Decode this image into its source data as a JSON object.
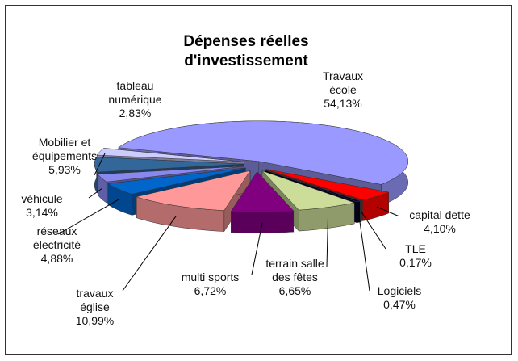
{
  "chart_data": {
    "type": "pie",
    "title": "Dépenses réelles d'investissement",
    "categories": [
      "Travaux école",
      "capital dette",
      "TLE",
      "Logiciels",
      "terrain salle des fêtes",
      "multi sports",
      "travaux église",
      "réseaux électricité",
      "véhicule",
      "Mobilier et équipements",
      "tableau numérique"
    ],
    "values": [
      54.13,
      4.1,
      0.17,
      0.47,
      6.65,
      6.72,
      10.99,
      4.88,
      3.14,
      5.93,
      2.83
    ],
    "value_labels": [
      "54,13%",
      "4,10%",
      "0,17%",
      "0,47%",
      "6,65%",
      "6,72%",
      "10,99%",
      "4,88%",
      "3,14%",
      "5,93%",
      "2,83%"
    ],
    "colors": [
      "#9999ff",
      "#ff0000",
      "#1f3b5a",
      "#00002a",
      "#ccdd99",
      "#800080",
      "#ff9999",
      "#0066cc",
      "#8888ee",
      "#336699",
      "#ccccff"
    ]
  }
}
